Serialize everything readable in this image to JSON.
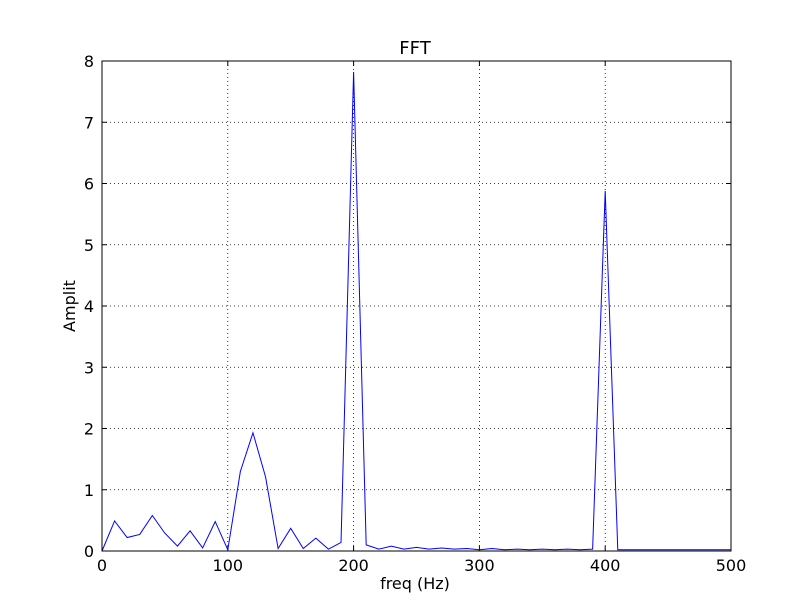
{
  "chart_data": {
    "type": "line",
    "title": "FFT",
    "xlabel": "freq (Hz)",
    "ylabel": "Amplit",
    "xlim": [
      0,
      500
    ],
    "ylim": [
      0,
      8
    ],
    "xticks": [
      0,
      100,
      200,
      300,
      400,
      500
    ],
    "yticks": [
      0,
      1,
      2,
      3,
      4,
      5,
      6,
      7,
      8
    ],
    "grid": true,
    "line_color": "#0000ff",
    "series": [
      {
        "x": [
          0,
          10,
          20,
          30,
          40,
          50,
          60,
          70,
          80,
          90,
          100,
          110,
          120,
          130,
          140,
          150,
          160,
          170,
          180,
          190,
          200,
          210,
          220,
          230,
          240,
          250,
          260,
          270,
          280,
          290,
          300,
          310,
          320,
          330,
          340,
          350,
          360,
          370,
          380,
          390,
          400,
          410,
          420,
          430,
          440,
          450,
          460,
          470,
          480,
          490,
          500
        ],
        "values": [
          0.0,
          0.49,
          0.22,
          0.27,
          0.58,
          0.29,
          0.08,
          0.33,
          0.05,
          0.48,
          0.02,
          1.3,
          1.93,
          1.21,
          0.04,
          0.37,
          0.04,
          0.21,
          0.03,
          0.14,
          7.82,
          0.1,
          0.03,
          0.08,
          0.03,
          0.06,
          0.03,
          0.05,
          0.03,
          0.04,
          0.02,
          0.04,
          0.02,
          0.03,
          0.02,
          0.03,
          0.02,
          0.03,
          0.02,
          0.03,
          5.88,
          0.02,
          0.02,
          0.02,
          0.02,
          0.02,
          0.02,
          0.02,
          0.02,
          0.02,
          0.02
        ]
      }
    ]
  }
}
